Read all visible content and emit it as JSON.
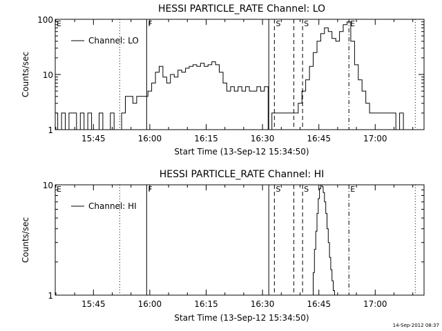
{
  "footer_timestamp": "14-Sep-2012 08:37",
  "chart_data": [
    {
      "type": "line",
      "title": "HESSI PARTICLE_RATE Channel: LO",
      "xlabel": "Start Time (13-Sep-12 15:34:50)",
      "ylabel": "Counts/sec",
      "yscale": "log",
      "ylim": [
        1,
        100
      ],
      "xlim": [
        "15:34:50",
        "17:13:00"
      ],
      "x_ticks": [
        "15:45",
        "16:00",
        "16:15",
        "16:30",
        "16:45",
        "17:00"
      ],
      "y_ticks": [
        "1",
        "10",
        "100"
      ],
      "legend": {
        "entry": "Channel: LO",
        "placement": "top-left"
      },
      "grid": false,
      "markers": [
        {
          "label": "E",
          "time": "15:34:50",
          "style": "dotted"
        },
        {
          "label": "",
          "time": "15:52:00",
          "style": "dotted"
        },
        {
          "label": "F",
          "time": "15:59:10",
          "style": "solid"
        },
        {
          "label": "",
          "time": "16:31:40",
          "style": "solid"
        },
        {
          "label": "S",
          "time": "16:33:10",
          "style": "dashed"
        },
        {
          "label": "",
          "time": "16:38:20",
          "style": "dashed"
        },
        {
          "label": "S",
          "time": "16:40:40",
          "style": "dashed"
        },
        {
          "label": "E",
          "time": "16:53:00",
          "style": "dashdot"
        },
        {
          "label": "",
          "time": "17:10:40",
          "style": "dotted"
        }
      ],
      "series": [
        {
          "name": "Channel: LO",
          "x": [
            "15:35:00",
            "15:36:00",
            "15:37:00",
            "15:38:00",
            "15:39:00",
            "15:40:00",
            "15:41:00",
            "15:42:00",
            "15:43:00",
            "15:44:00",
            "15:45:00",
            "15:46:00",
            "15:47:00",
            "15:48:00",
            "15:49:00",
            "15:50:00",
            "15:51:00",
            "15:52:00",
            "15:53:00",
            "15:54:00",
            "15:55:00",
            "15:56:00",
            "15:57:00",
            "15:58:00",
            "15:59:00",
            "16:00:00",
            "16:01:00",
            "16:02:00",
            "16:03:00",
            "16:04:00",
            "16:05:00",
            "16:06:00",
            "16:07:00",
            "16:08:00",
            "16:09:00",
            "16:10:00",
            "16:11:00",
            "16:12:00",
            "16:13:00",
            "16:14:00",
            "16:15:00",
            "16:16:00",
            "16:17:00",
            "16:18:00",
            "16:19:00",
            "16:20:00",
            "16:21:00",
            "16:22:00",
            "16:23:00",
            "16:24:00",
            "16:25:00",
            "16:26:00",
            "16:27:00",
            "16:28:00",
            "16:29:00",
            "16:30:00",
            "16:31:00",
            "16:32:00",
            "16:33:00",
            "16:34:00",
            "16:35:00",
            "16:36:00",
            "16:37:00",
            "16:38:00",
            "16:39:00",
            "16:40:00",
            "16:41:00",
            "16:42:00",
            "16:43:00",
            "16:44:00",
            "16:45:00",
            "16:46:00",
            "16:47:00",
            "16:48:00",
            "16:49:00",
            "16:50:00",
            "16:51:00",
            "16:52:00",
            "16:53:00",
            "16:54:00",
            "16:55:00",
            "16:56:00",
            "16:57:00",
            "16:58:00",
            "16:59:00",
            "17:00:00",
            "17:01:00",
            "17:02:00",
            "17:03:00",
            "17:04:00",
            "17:05:00",
            "17:06:00",
            "17:07:00",
            "17:08:00",
            "17:09:00",
            "17:10:00"
          ],
          "y": [
            2,
            1,
            2,
            1,
            2,
            2,
            1,
            2,
            1,
            2,
            1,
            1,
            2,
            1,
            1,
            2,
            1,
            1,
            2,
            4,
            4,
            3,
            4,
            4,
            4,
            5,
            7,
            11,
            14,
            9,
            7,
            10,
            9,
            12,
            11,
            13,
            14,
            15,
            14,
            16,
            14,
            15,
            17,
            15,
            11,
            7,
            5,
            6,
            5,
            6,
            5,
            6,
            5,
            5,
            6,
            5,
            6,
            1,
            2,
            2,
            2,
            2,
            2,
            2,
            2,
            3,
            5,
            8,
            14,
            25,
            40,
            55,
            70,
            60,
            45,
            40,
            60,
            80,
            90,
            40,
            15,
            8,
            5,
            3,
            2,
            2,
            2,
            2,
            2,
            2,
            2,
            1,
            2,
            1,
            1,
            1
          ]
        }
      ]
    },
    {
      "type": "line",
      "title": "HESSI PARTICLE_RATE Channel: HI",
      "xlabel": "Start Time (13-Sep-12 15:34:50)",
      "ylabel": "Counts/sec",
      "yscale": "log",
      "ylim": [
        1,
        10
      ],
      "xlim": [
        "15:34:50",
        "17:13:00"
      ],
      "x_ticks": [
        "15:45",
        "16:00",
        "16:15",
        "16:30",
        "16:45",
        "17:00"
      ],
      "y_ticks": [
        "1",
        "10"
      ],
      "legend": {
        "entry": "Channel: HI",
        "placement": "top-left"
      },
      "grid": false,
      "markers": [
        {
          "label": "E",
          "time": "15:34:50",
          "style": "dotted"
        },
        {
          "label": "",
          "time": "15:52:00",
          "style": "dotted"
        },
        {
          "label": "F",
          "time": "15:59:10",
          "style": "solid"
        },
        {
          "label": "",
          "time": "16:31:40",
          "style": "solid"
        },
        {
          "label": "S",
          "time": "16:33:10",
          "style": "dashed"
        },
        {
          "label": "",
          "time": "16:38:20",
          "style": "dashed"
        },
        {
          "label": "S",
          "time": "16:40:40",
          "style": "dashed"
        },
        {
          "label": "E",
          "time": "16:53:00",
          "style": "dashdot"
        },
        {
          "label": "",
          "time": "17:10:40",
          "style": "dotted"
        }
      ],
      "series": [
        {
          "name": "Channel: HI",
          "x": [
            "16:43:20",
            "16:43:40",
            "16:44:00",
            "16:44:20",
            "16:44:40",
            "16:45:00",
            "16:45:20",
            "16:45:40",
            "16:46:00",
            "16:46:20",
            "16:46:40",
            "16:47:00",
            "16:47:20",
            "16:47:40",
            "16:48:00",
            "16:48:20",
            "16:48:40",
            "16:49:00",
            "16:49:20"
          ],
          "y": [
            1,
            1.6,
            2.6,
            3.8,
            5.5,
            7.5,
            9.2,
            10,
            9.6,
            8.5,
            7,
            5.5,
            4,
            3,
            2.2,
            1.7,
            1.35,
            1.1,
            1
          ]
        }
      ]
    }
  ]
}
